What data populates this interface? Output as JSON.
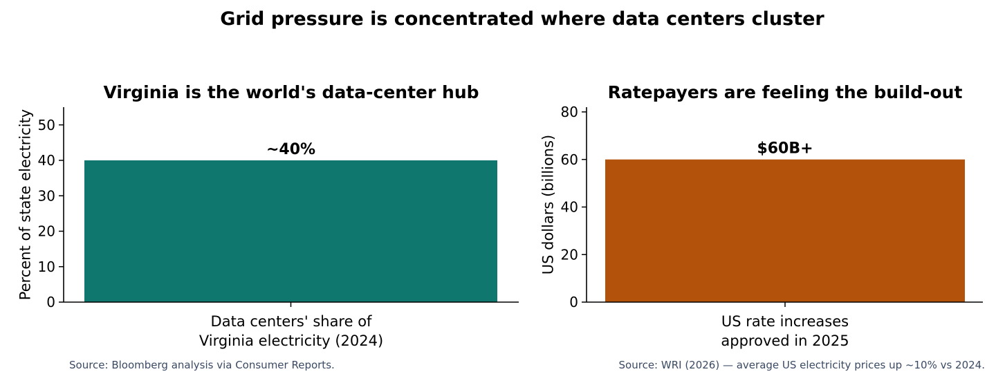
{
  "figure_title": "Grid pressure is concentrated where data centers cluster",
  "chart_data": [
    {
      "type": "bar",
      "title": "Virginia is the world's data-center hub",
      "ylabel": "Percent of state electricity",
      "xlabel": "",
      "categories": [
        [
          "Data centers' share of",
          "Virginia electricity (2024)"
        ]
      ],
      "values": [
        40
      ],
      "data_labels": [
        "~40%"
      ],
      "ylim": [
        0,
        55
      ],
      "yticks": [
        0,
        10,
        20,
        30,
        40,
        50
      ],
      "color": "#10776e",
      "grid": false,
      "source": "Source: Bloomberg analysis via Consumer Reports."
    },
    {
      "type": "bar",
      "title": "Ratepayers are feeling the build-out",
      "ylabel": "US dollars (billions)",
      "xlabel": "",
      "categories": [
        [
          "US rate increases",
          "approved in 2025"
        ]
      ],
      "values": [
        60
      ],
      "data_labels": [
        "$60B+"
      ],
      "ylim": [
        0,
        82
      ],
      "yticks": [
        0,
        20,
        40,
        60,
        80
      ],
      "color": "#b3530b",
      "grid": false,
      "source": "Source: WRI (2026) — average US electricity prices up ~10% vs 2024."
    }
  ]
}
